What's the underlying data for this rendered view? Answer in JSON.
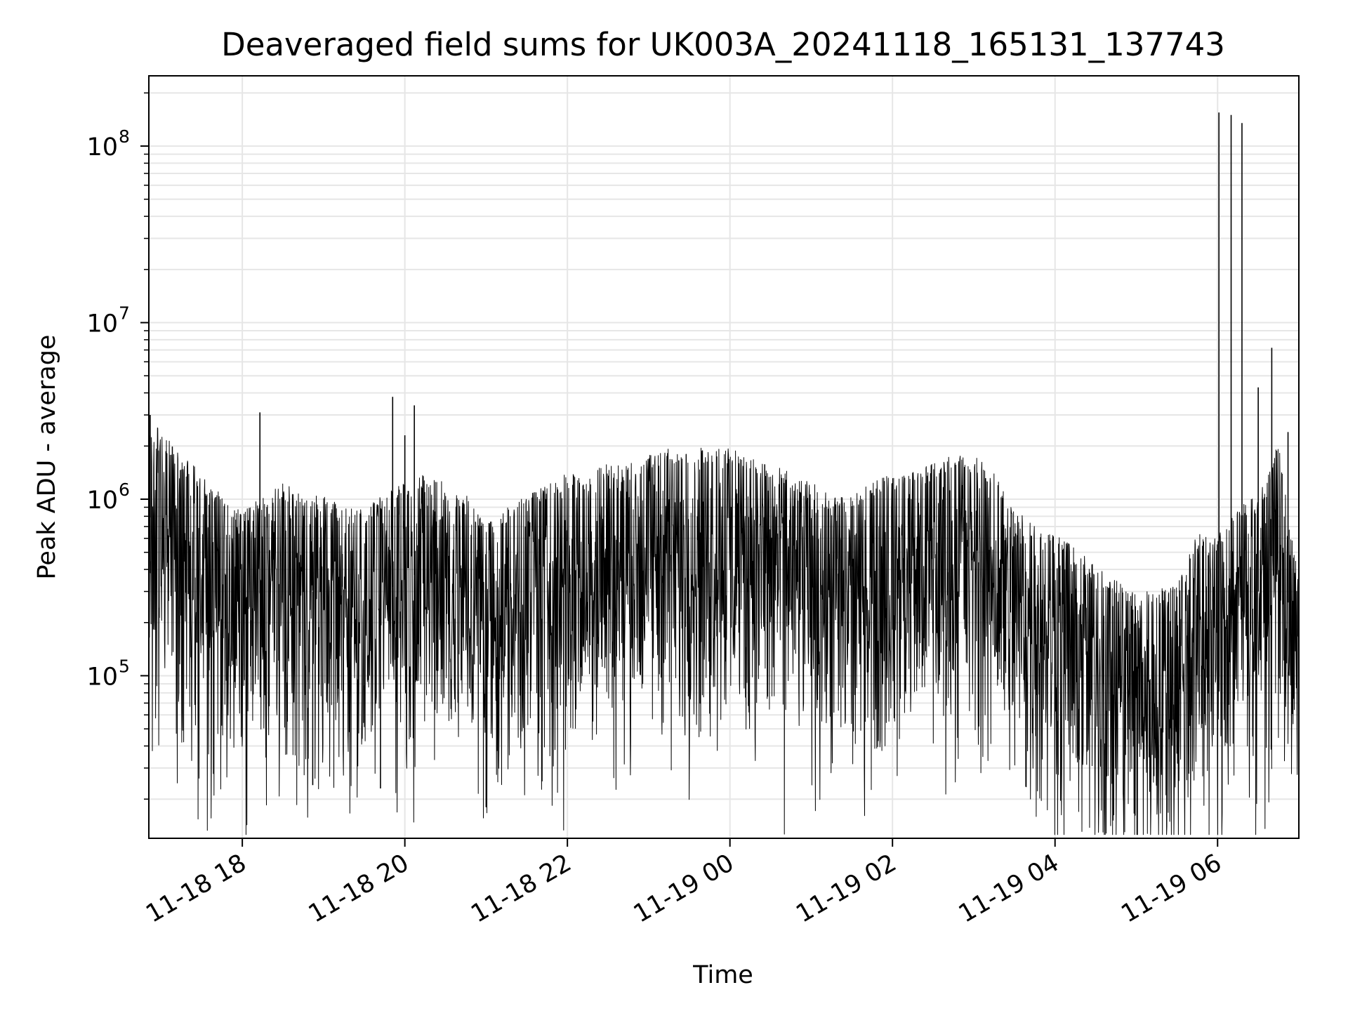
{
  "chart_data": {
    "type": "line",
    "title": "Deaveraged field sums for UK003A_20241118_165131_137743",
    "xlabel": "Time",
    "ylabel": "Peak ADU - average",
    "x_range": [
      "2024-11-18 16:51",
      "2024-11-19 07:00"
    ],
    "y_range": [
      12000,
      250000000
    ],
    "y_scale": "log",
    "grid": true,
    "grid_color": "#e6e6e6",
    "line_color": "#000000",
    "x_ticks": [
      {
        "value": "2024-11-18 18:00",
        "label": "11-18 18"
      },
      {
        "value": "2024-11-18 20:00",
        "label": "11-18 20"
      },
      {
        "value": "2024-11-18 22:00",
        "label": "11-18 22"
      },
      {
        "value": "2024-11-19 00:00",
        "label": "11-19 00"
      },
      {
        "value": "2024-11-19 02:00",
        "label": "11-19 02"
      },
      {
        "value": "2024-11-19 04:00",
        "label": "11-19 04"
      },
      {
        "value": "2024-11-19 06:00",
        "label": "11-19 06"
      }
    ],
    "y_ticks": [
      {
        "value": 100000,
        "base": "10",
        "exp": "5"
      },
      {
        "value": 1000000,
        "base": "10",
        "exp": "6"
      },
      {
        "value": 10000000,
        "base": "10",
        "exp": "7"
      },
      {
        "value": 100000000,
        "base": "10",
        "exp": "8"
      }
    ],
    "series": [
      {
        "x": [
          "2024-11-18 16:51",
          "2024-11-18 17:00",
          "2024-11-18 17:15",
          "2024-11-18 17:30",
          "2024-11-18 17:45",
          "2024-11-18 18:00",
          "2024-11-18 18:15",
          "2024-11-18 18:30",
          "2024-11-18 18:45",
          "2024-11-18 19:00",
          "2024-11-18 19:15",
          "2024-11-18 19:30",
          "2024-11-18 19:45",
          "2024-11-18 20:00",
          "2024-11-18 20:15",
          "2024-11-18 20:30",
          "2024-11-18 20:45",
          "2024-11-18 21:00",
          "2024-11-18 21:15",
          "2024-11-18 21:30",
          "2024-11-18 21:45",
          "2024-11-18 22:00",
          "2024-11-18 22:15",
          "2024-11-18 22:30",
          "2024-11-18 22:45",
          "2024-11-18 23:00",
          "2024-11-18 23:15",
          "2024-11-18 23:30",
          "2024-11-18 23:45",
          "2024-11-19 00:00",
          "2024-11-19 00:15",
          "2024-11-19 00:30",
          "2024-11-19 00:45",
          "2024-11-19 01:00",
          "2024-11-19 01:15",
          "2024-11-19 01:30",
          "2024-11-19 01:45",
          "2024-11-19 02:00",
          "2024-11-19 02:15",
          "2024-11-19 02:30",
          "2024-11-19 02:45",
          "2024-11-19 03:00",
          "2024-11-19 03:15",
          "2024-11-19 03:30",
          "2024-11-19 03:45",
          "2024-11-19 04:00",
          "2024-11-19 04:15",
          "2024-11-19 04:30",
          "2024-11-19 04:45",
          "2024-11-19 05:00",
          "2024-11-19 05:15",
          "2024-11-19 05:30",
          "2024-11-19 05:45",
          "2024-11-19 06:00",
          "2024-11-19 06:15",
          "2024-11-19 06:30",
          "2024-11-19 06:45",
          "2024-11-19 07:00"
        ],
        "y": [
          800000,
          700000,
          500000,
          400000,
          300000,
          250000,
          300000,
          350000,
          300000,
          300000,
          250000,
          250000,
          300000,
          350000,
          400000,
          350000,
          300000,
          200000,
          250000,
          300000,
          350000,
          400000,
          400000,
          450000,
          450000,
          500000,
          550000,
          550000,
          550000,
          550000,
          500000,
          450000,
          400000,
          350000,
          300000,
          300000,
          350000,
          400000,
          400000,
          450000,
          500000,
          500000,
          400000,
          250000,
          200000,
          200000,
          150000,
          120000,
          100000,
          80000,
          90000,
          90000,
          180000,
          180000,
          250000,
          300000,
          600000,
          100000
        ],
        "spread_decades": 1.1,
        "max_decades": 0.55,
        "spikes": [
          {
            "x": "2024-11-18 16:52",
            "y": 3000000
          },
          {
            "x": "2024-11-18 18:13",
            "y": 3100000
          },
          {
            "x": "2024-11-18 19:51",
            "y": 3800000
          },
          {
            "x": "2024-11-18 20:00",
            "y": 2300000
          },
          {
            "x": "2024-11-18 20:07",
            "y": 3400000
          },
          {
            "x": "2024-11-18 18:52",
            "y": 24000
          },
          {
            "x": "2024-11-18 19:42",
            "y": 23000
          },
          {
            "x": "2024-11-18 21:00",
            "y": 18000
          },
          {
            "x": "2024-11-19 05:13",
            "y": 27000
          },
          {
            "x": "2024-11-19 06:01",
            "y": 155000000
          },
          {
            "x": "2024-11-19 06:10",
            "y": 150000000
          },
          {
            "x": "2024-11-19 06:18",
            "y": 135000000
          },
          {
            "x": "2024-11-19 06:30",
            "y": 4300000
          },
          {
            "x": "2024-11-19 06:40",
            "y": 7200000
          },
          {
            "x": "2024-11-19 06:52",
            "y": 2400000
          }
        ]
      }
    ]
  }
}
